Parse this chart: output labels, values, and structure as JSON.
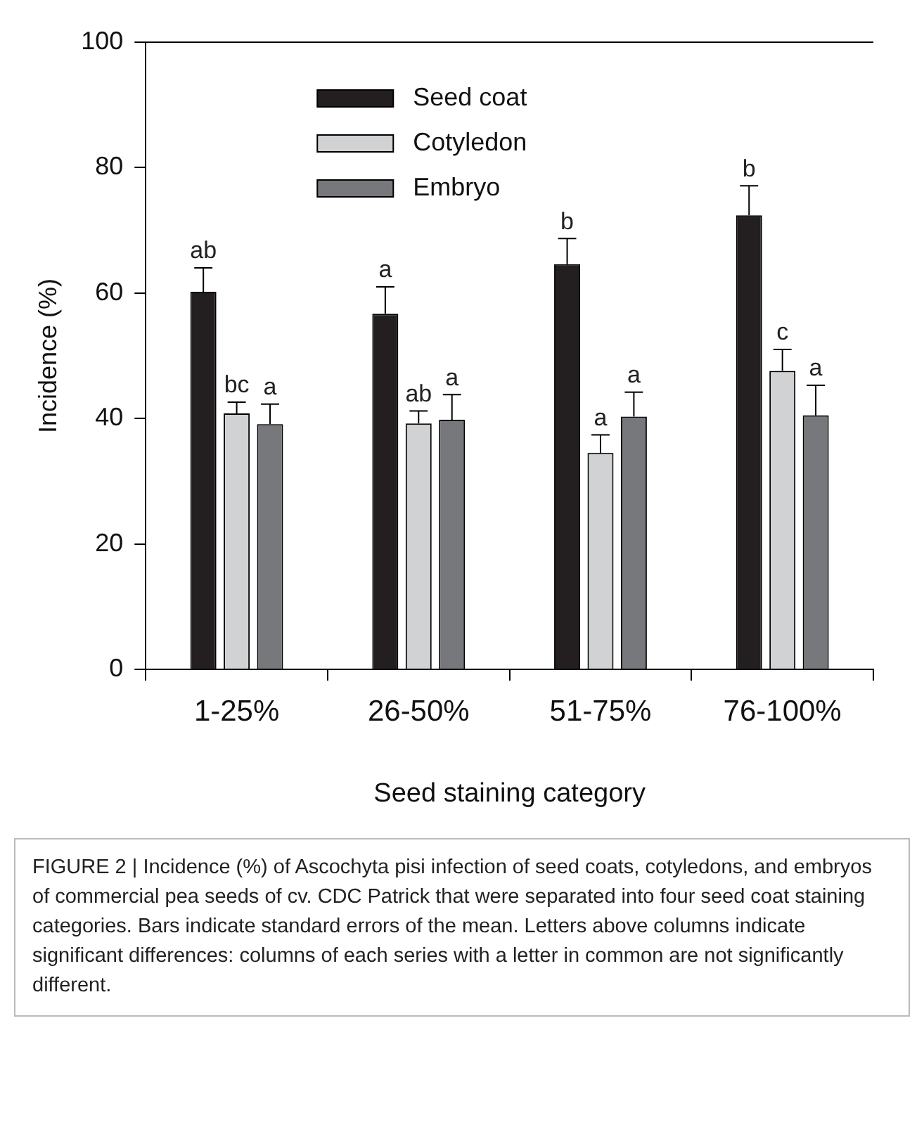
{
  "chart_data": {
    "type": "bar",
    "xlabel": "Seed staining category",
    "ylabel": "Incidence (%)",
    "categories": [
      "1-25%",
      "26-50%",
      "51-75%",
      "76-100%"
    ],
    "series": [
      {
        "name": "Seed coat",
        "color": "#231f20",
        "values": [
          60.2,
          56.7,
          64.6,
          72.4
        ],
        "errors": [
          [
            60.2,
            64.0
          ],
          [
            56.7,
            61.0
          ],
          [
            64.6,
            68.7
          ],
          [
            72.4,
            77.1
          ]
        ],
        "value_labels": [
          "ab",
          "a",
          "b",
          "b"
        ]
      },
      {
        "name": "Cotyledon",
        "color": "#d0d2d3",
        "values": [
          40.8,
          39.2,
          34.5,
          47.6
        ],
        "errors": [
          [
            40.8,
            42.6
          ],
          [
            39.2,
            41.2
          ],
          [
            34.5,
            37.4
          ],
          [
            47.6,
            51.0
          ]
        ],
        "value_labels": [
          "bc",
          "ab",
          "a",
          "c"
        ]
      },
      {
        "name": "Embryo",
        "color": "#77787b",
        "values": [
          39.1,
          39.8,
          40.3,
          40.5
        ],
        "errors": [
          [
            39.1,
            42.3
          ],
          [
            39.8,
            43.8
          ],
          [
            40.3,
            44.2
          ],
          [
            40.5,
            45.3
          ]
        ],
        "value_labels": [
          "a",
          "a",
          "a",
          "a"
        ]
      }
    ],
    "ylim": [
      0,
      100
    ],
    "yticks": [
      0,
      20,
      40,
      60,
      80,
      100
    ],
    "grid": false,
    "legend": "top left",
    "annotations": [
      "FIGURE 2 | Incidence (%) of Ascochyta pisi infection of seed coats, cotyledons, and embryos of commercial pea seeds of cv. CDC Patrick that were separated into four seed coat staining categories. Bars indicate standard errors of the mean. Letters above columns indicate significant differences: columns of each series with a letter in common are not significantly different."
    ]
  }
}
